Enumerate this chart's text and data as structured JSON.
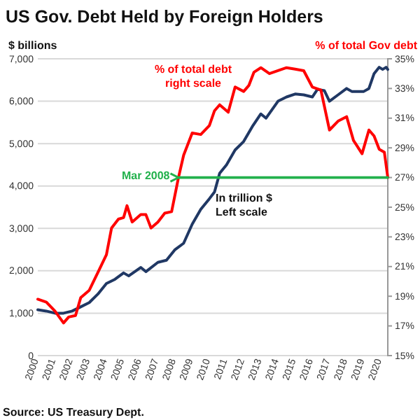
{
  "chart_data": {
    "type": "line",
    "title": "US Gov. Debt Held by Foreign Holders",
    "ylabel": "$ billions",
    "y2label": "% of total Gov debt",
    "annotations": [
      "% of total debt\nright scale",
      "In trillion $\nLeft scale",
      "Mar 2008",
      "Source: US Treasury Dept."
    ],
    "series": [
      {
        "color": "#203864",
        "x": [
          2000,
          2000.5,
          2001,
          2001.5,
          2002,
          2002.5,
          2003,
          2003.5,
          2004,
          2004.5,
          2005,
          2005.3,
          2006,
          2006.3,
          2007,
          2007.5,
          2008,
          2008.5,
          2009,
          2009.5,
          2010,
          2010.3,
          2010.6,
          2011,
          2011.5,
          2012,
          2012.5,
          2013,
          2013.3,
          2014,
          2014.5,
          2015,
          2015.5,
          2016,
          2016.3,
          2016.7,
          2017,
          2017.5,
          2018,
          2018.3,
          2019,
          2019.3,
          2019.6,
          2019.9,
          2020.1,
          2020.3,
          2020.4
        ],
        "values": [
          1080,
          1050,
          1000,
          1000,
          1050,
          1150,
          1250,
          1450,
          1700,
          1800,
          1950,
          1880,
          2080,
          1980,
          2200,
          2250,
          2500,
          2650,
          3100,
          3450,
          3700,
          3860,
          4300,
          4500,
          4850,
          5050,
          5400,
          5700,
          5600,
          6000,
          6100,
          6170,
          6150,
          6100,
          6280,
          6250,
          6000,
          6150,
          6300,
          6230,
          6230,
          6300,
          6650,
          6800,
          6750,
          6800,
          6750
        ]
      },
      {
        "color": "#ff0000",
        "axis": "y2",
        "x": [
          2000,
          2000.5,
          2001,
          2001.5,
          2001.8,
          2002.2,
          2002.5,
          2003,
          2003.5,
          2004,
          2004.3,
          2004.7,
          2005,
          2005.2,
          2005.5,
          2006,
          2006.3,
          2006.6,
          2007,
          2007.4,
          2007.8,
          2008.2,
          2008.5,
          2009,
          2009.5,
          2010,
          2010.3,
          2010.6,
          2011.1,
          2011.5,
          2012,
          2012.3,
          2012.6,
          2013,
          2013.5,
          2014,
          2014.5,
          2015,
          2015.5,
          2016,
          2016.5,
          2017,
          2017.5,
          2018,
          2018.4,
          2018.9,
          2019.3,
          2019.6,
          2019.9,
          2020.2,
          2020.4
        ],
        "values": [
          18.8,
          18.6,
          18.0,
          17.2,
          17.6,
          17.7,
          18.9,
          19.4,
          20.6,
          21.8,
          23.6,
          24.2,
          24.3,
          25.1,
          24.0,
          24.5,
          24.5,
          23.6,
          24.0,
          24.6,
          24.7,
          27.0,
          28.5,
          30.0,
          29.9,
          30.5,
          31.5,
          31.9,
          31.4,
          33.1,
          32.8,
          33.2,
          34.1,
          34.4,
          34.0,
          34.2,
          34.4,
          34.3,
          34.2,
          33.1,
          32.9,
          30.2,
          30.8,
          31.1,
          29.5,
          28.6,
          30.2,
          29.8,
          28.9,
          28.7,
          27.0
        ]
      },
      {
        "color": "#22b14c",
        "axis": "y2",
        "x": [
          2008.2,
          2020.4
        ],
        "values": [
          27,
          27
        ]
      }
    ],
    "xlim": [
      2000,
      2020.4
    ],
    "xticks": [
      2000,
      2001,
      2002,
      2003,
      2004,
      2005,
      2006,
      2007,
      2008,
      2009,
      2010,
      2011,
      2012,
      2013,
      2014,
      2015,
      2016,
      2017,
      2018,
      2019,
      2020
    ],
    "ylim": [
      0,
      7000
    ],
    "yticks": [
      {
        "value": 0,
        "label": "0"
      },
      {
        "value": 1000,
        "label": "1,000"
      },
      {
        "value": 2000,
        "label": "2,000"
      },
      {
        "value": 3000,
        "label": "3,000"
      },
      {
        "value": 4000,
        "label": "4,000"
      },
      {
        "value": 5000,
        "label": "5,000"
      },
      {
        "value": 6000,
        "label": "6,000"
      },
      {
        "value": 7000,
        "label": "7,000"
      }
    ],
    "y2lim": [
      15,
      35
    ],
    "y2ticks": [
      {
        "value": 15,
        "label": "15%"
      },
      {
        "value": 17,
        "label": "17%"
      },
      {
        "value": 19,
        "label": "19%"
      },
      {
        "value": 21,
        "label": "21%"
      },
      {
        "value": 23,
        "label": "23%"
      },
      {
        "value": 25,
        "label": "25%"
      },
      {
        "value": 27,
        "label": "27%"
      },
      {
        "value": 29,
        "label": "29%"
      },
      {
        "value": 31,
        "label": "31%"
      },
      {
        "value": 33,
        "label": "33%"
      },
      {
        "value": 35,
        "label": "35%"
      }
    ],
    "grid": "y"
  }
}
